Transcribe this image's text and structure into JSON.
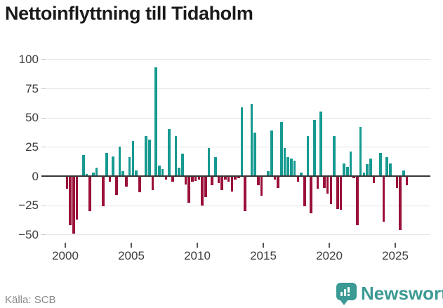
{
  "title": "Nettoinflyttning till Tidaholm",
  "source": "Källa: SCB",
  "logo": {
    "brand": "Newsworthy"
  },
  "colors": {
    "positive_bar": "#169a91",
    "negative_bar": "#9a1039",
    "gridline": "#e3e3e3",
    "zero_line": "#373737",
    "axis_text": "#3d3d3d",
    "brand_teal": "#3b9a93"
  },
  "chart_data": {
    "type": "bar",
    "title": "Nettoinflyttning till Tidaholm",
    "frequency": "quarterly",
    "x_start": "2000Q1",
    "x_end": "2025Q4",
    "xlabel": "",
    "ylabel": "",
    "ylim": [
      -50,
      100
    ],
    "y_ticks": [
      100,
      75,
      50,
      25,
      0,
      -25,
      -50
    ],
    "x_tick_years": [
      2000,
      2005,
      2010,
      2015,
      2020,
      2025
    ],
    "grid": "horizontal",
    "legend": "none",
    "values": [
      -11,
      -42,
      -49,
      -37,
      0,
      18,
      2,
      -30,
      3,
      7,
      0,
      -26,
      20,
      -5,
      17,
      -16,
      25,
      4,
      -9,
      16,
      30,
      5,
      -14,
      0,
      34,
      31,
      -12,
      93,
      9,
      6,
      -3,
      40,
      -5,
      34,
      7,
      19,
      -7,
      -23,
      -5,
      -4,
      -3,
      -25,
      -18,
      24,
      -8,
      16,
      -6,
      -12,
      -3,
      -5,
      -13,
      -3,
      -2,
      59,
      -30,
      0,
      62,
      37,
      -8,
      -17,
      0,
      4,
      39,
      -3,
      -10,
      46,
      24,
      16,
      15,
      13,
      -5,
      3,
      -26,
      34,
      -32,
      48,
      -11,
      55,
      -10,
      -15,
      -24,
      34,
      -28,
      -29,
      11,
      8,
      21,
      -2,
      -42,
      42,
      3,
      10,
      15,
      -6,
      0,
      20,
      -39,
      16,
      11,
      0,
      -10,
      -46,
      5,
      -8
    ]
  }
}
